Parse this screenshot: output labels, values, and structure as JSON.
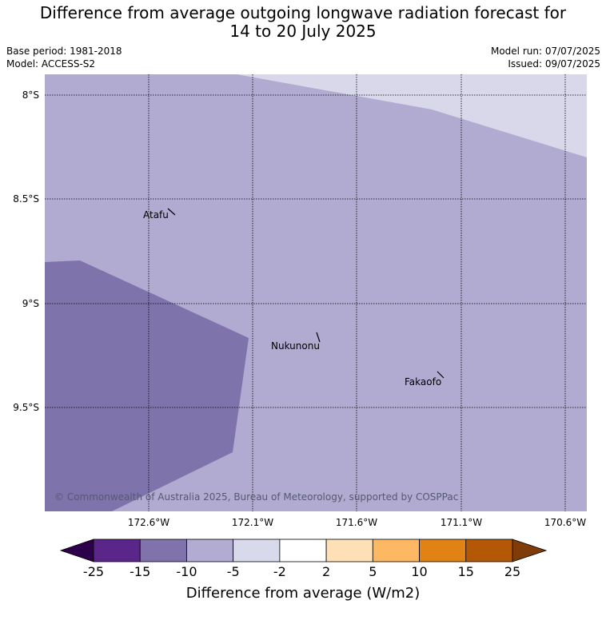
{
  "title": {
    "line1": "Difference from average outgoing longwave radiation forecast for",
    "line2": "14 to 20 July 2025"
  },
  "meta": {
    "base_period": "Base period: 1981-2018",
    "model": "Model: ACCESS-S2",
    "model_run": "Model run: 07/07/2025",
    "issued": "Issued: 09/07/2025"
  },
  "map": {
    "lat_labels": [
      "8°S",
      "8.5°S",
      "9°S",
      "9.5°S"
    ],
    "lon_labels": [
      "172.6°W",
      "172.1°W",
      "171.6°W",
      "171.1°W",
      "170.6°W"
    ],
    "places": [
      {
        "name": "Atafu"
      },
      {
        "name": "Nukunonu"
      },
      {
        "name": "Fakaofo"
      }
    ],
    "copyright": "© Commonwealth of Australia 2025, Bureau of Meteorology, supported by COSPPac",
    "region_categories": [
      "-5 to -2",
      "-10 to -5",
      "-15 to -10"
    ]
  },
  "colorbar": {
    "ticks": [
      "-25",
      "-15",
      "-10",
      "-5",
      "-2",
      "2",
      "5",
      "10",
      "15",
      "25"
    ],
    "colors": [
      "#5b2689",
      "#8073ac",
      "#b2abd2",
      "#d8daeb",
      "#ffffff",
      "#fee0b6",
      "#fdb863",
      "#e08214",
      "#b35806"
    ],
    "under_color": "#2d004b",
    "over_color": "#7f3b08",
    "label": "Difference from average (W/m2)"
  },
  "colors": {
    "light": "#d8d8ea",
    "medium": "#b1aad1",
    "dark": "#7f73ab",
    "grid": "#000000"
  }
}
